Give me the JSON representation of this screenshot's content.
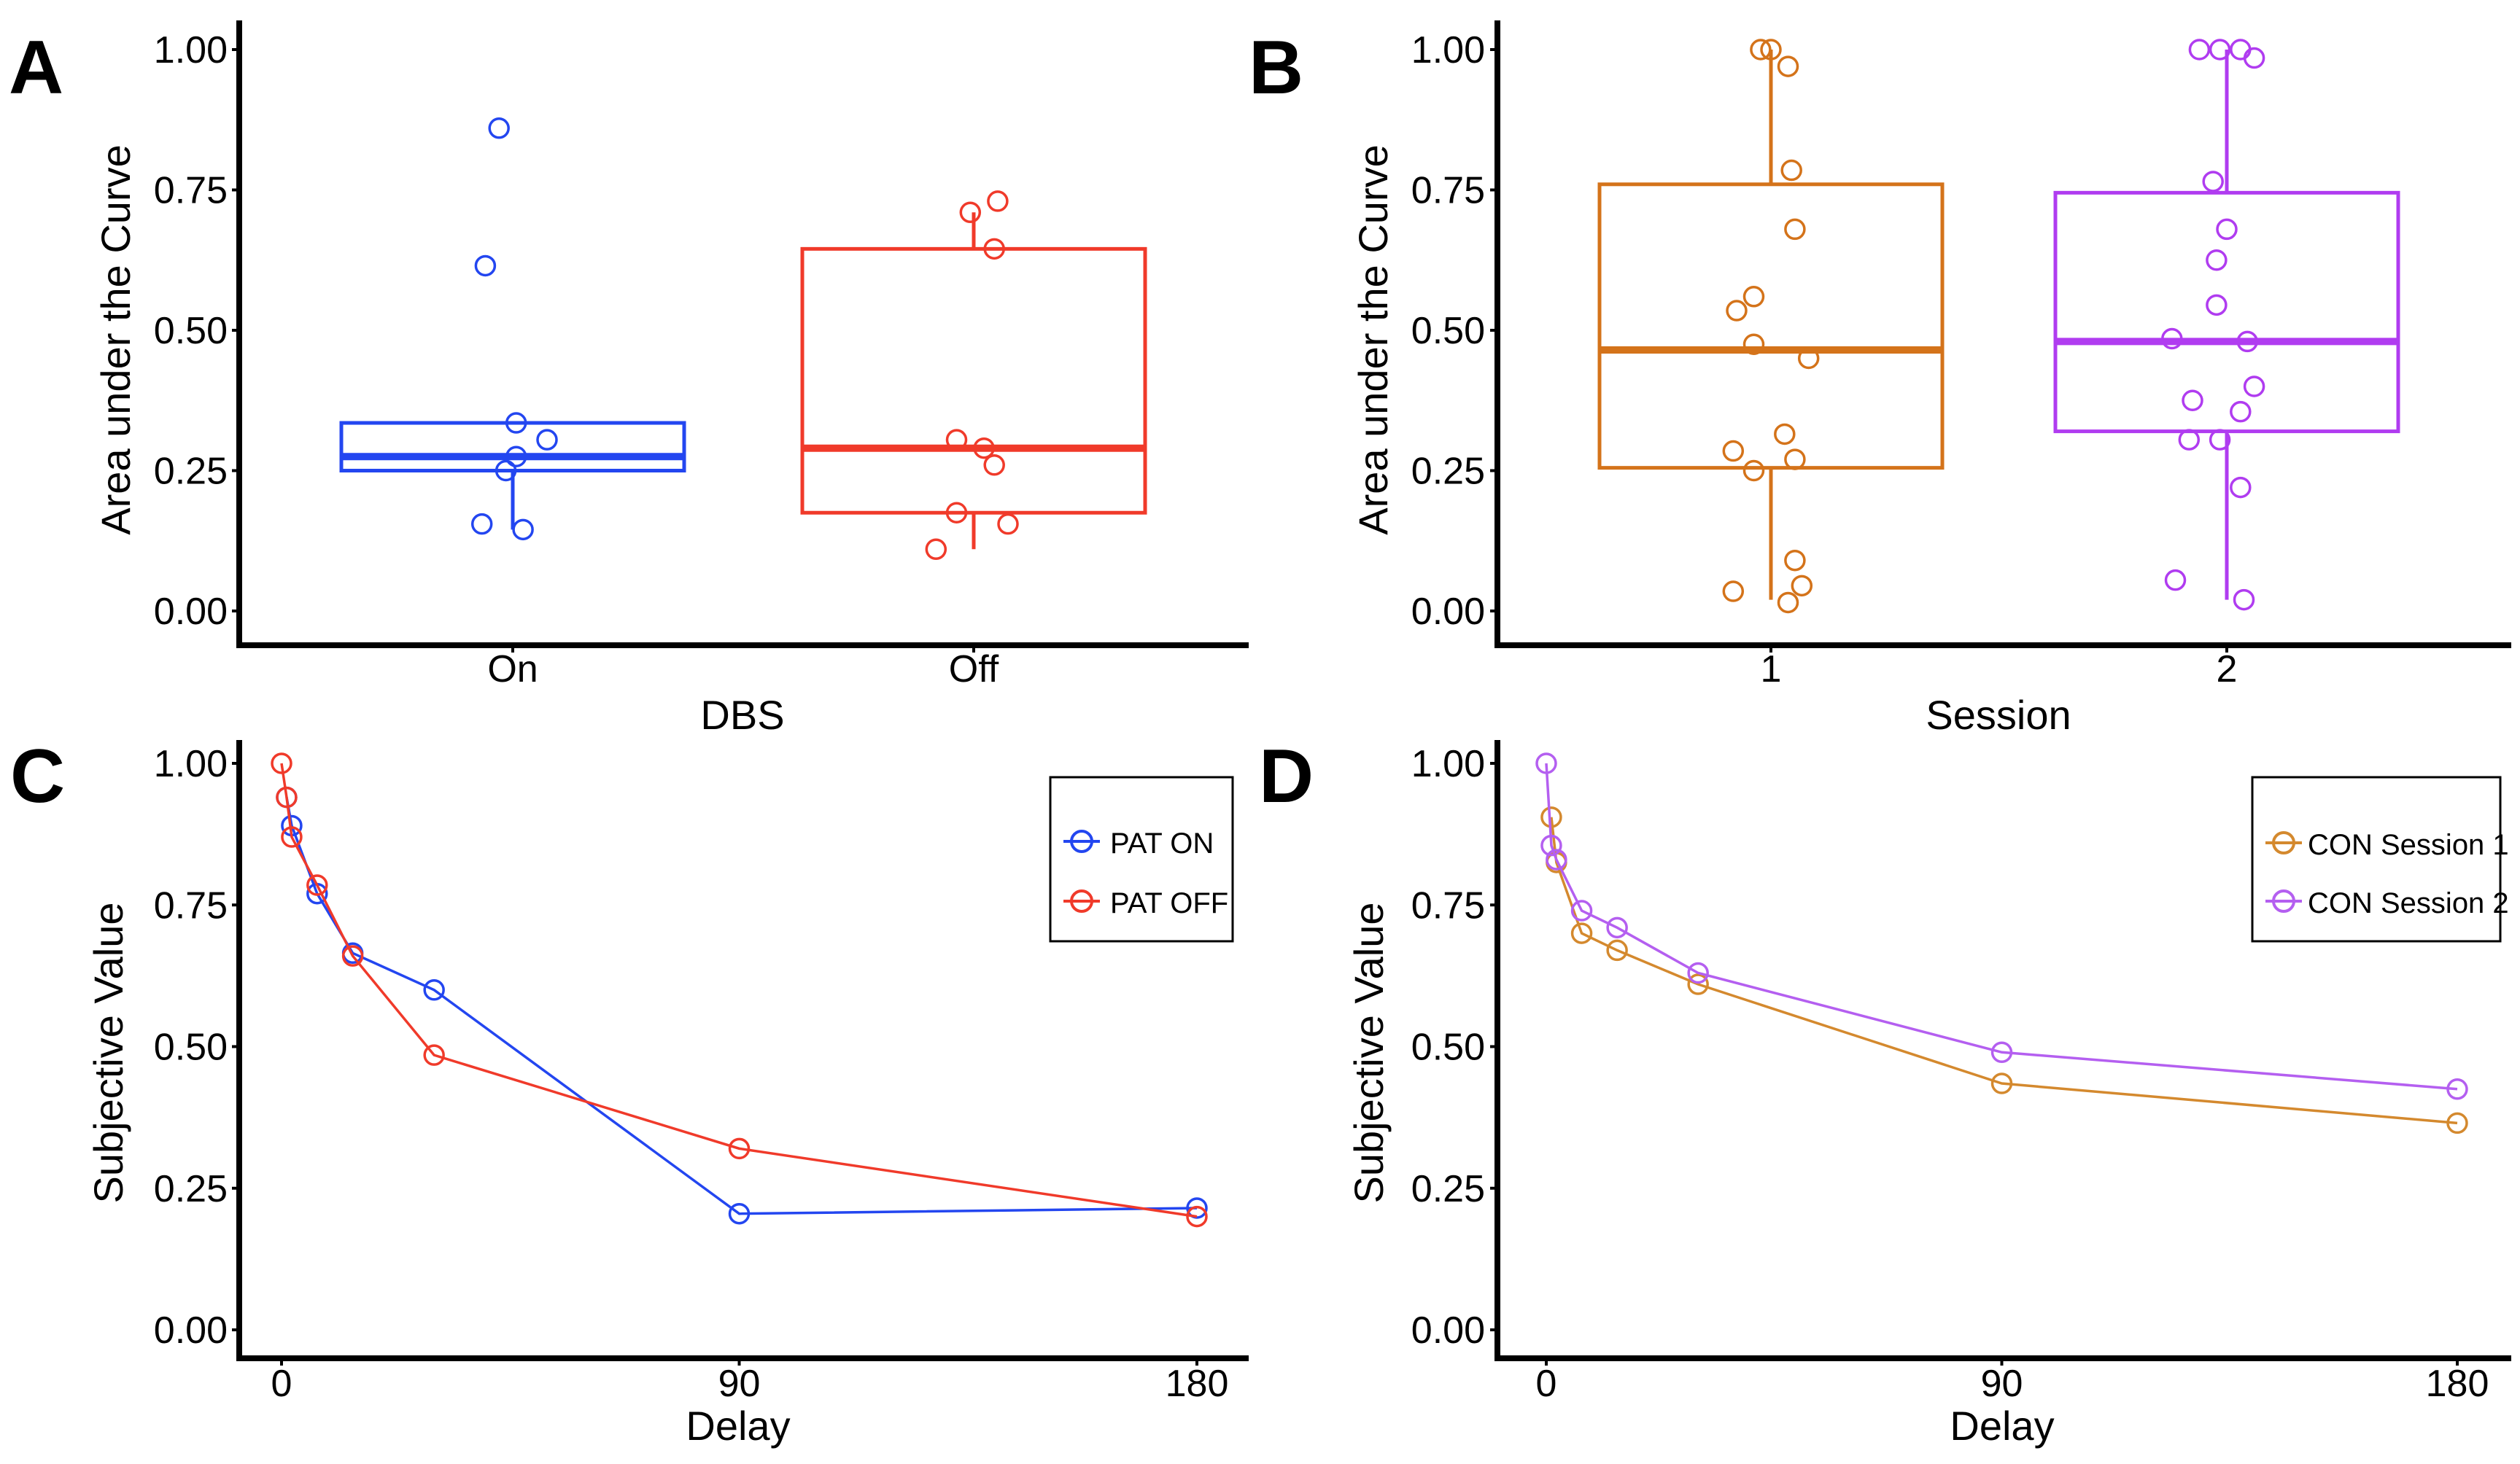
{
  "panels": [
    {
      "id": "A",
      "letter": "A",
      "chart_data": {
        "type": "boxplot",
        "ylabel": "Area under the Curve",
        "xlabel": "DBS",
        "ylim": [
          0,
          1
        ],
        "yticks": [
          0,
          0.25,
          0.5,
          0.75,
          1
        ],
        "ytick_labels": [
          "0.00",
          "0.25",
          "0.50",
          "0.75",
          "1.00"
        ],
        "categories": [
          "On",
          "Off"
        ],
        "groups": [
          {
            "name": "On",
            "color": "#2346f0",
            "q1": 0.25,
            "median": 0.275,
            "q3": 0.335,
            "whisker_low": 0.145,
            "whisker_high": 0.335,
            "points": [
              [
                -0.04,
                0.86
              ],
              [
                -0.08,
                0.615
              ],
              [
                0.01,
                0.335
              ],
              [
                0.1,
                0.305
              ],
              [
                0.01,
                0.275
              ],
              [
                -0.02,
                0.25
              ],
              [
                -0.09,
                0.155
              ],
              [
                0.03,
                0.145
              ]
            ]
          },
          {
            "name": "Off",
            "color": "#f03a2a",
            "q1": 0.175,
            "median": 0.29,
            "q3": 0.645,
            "whisker_low": 0.11,
            "whisker_high": 0.71,
            "points": [
              [
                -0.01,
                0.71
              ],
              [
                0.07,
                0.73
              ],
              [
                0.06,
                0.645
              ],
              [
                -0.05,
                0.305
              ],
              [
                0.03,
                0.29
              ],
              [
                0.06,
                0.26
              ],
              [
                -0.05,
                0.175
              ],
              [
                0.1,
                0.155
              ],
              [
                -0.11,
                0.11
              ]
            ]
          }
        ]
      }
    },
    {
      "id": "B",
      "letter": "B",
      "chart_data": {
        "type": "boxplot",
        "ylabel": "Area under the Curve",
        "xlabel": "Session",
        "ylim": [
          0,
          1
        ],
        "yticks": [
          0,
          0.25,
          0.5,
          0.75,
          1
        ],
        "ytick_labels": [
          "0.00",
          "0.25",
          "0.50",
          "0.75",
          "1.00"
        ],
        "categories": [
          "1",
          "2"
        ],
        "groups": [
          {
            "name": "1",
            "color": "#d4731a",
            "q1": 0.255,
            "median": 0.465,
            "q3": 0.76,
            "whisker_low": 0.02,
            "whisker_high": 1.0,
            "points": [
              [
                -0.03,
                1.0
              ],
              [
                0.0,
                1.0
              ],
              [
                0.05,
                0.97
              ],
              [
                0.06,
                0.785
              ],
              [
                0.07,
                0.68
              ],
              [
                -0.05,
                0.56
              ],
              [
                -0.1,
                0.535
              ],
              [
                -0.05,
                0.475
              ],
              [
                0.11,
                0.45
              ],
              [
                0.04,
                0.315
              ],
              [
                -0.11,
                0.285
              ],
              [
                0.07,
                0.27
              ],
              [
                -0.05,
                0.25
              ],
              [
                0.07,
                0.09
              ],
              [
                0.09,
                0.045
              ],
              [
                -0.11,
                0.035
              ],
              [
                0.05,
                0.015
              ]
            ]
          },
          {
            "name": "2",
            "color": "#b03cf0",
            "q1": 0.32,
            "median": 0.48,
            "q3": 0.745,
            "whisker_low": 0.02,
            "whisker_high": 1.0,
            "points": [
              [
                -0.08,
                1.0
              ],
              [
                -0.02,
                1.0
              ],
              [
                0.04,
                1.0
              ],
              [
                0.08,
                0.985
              ],
              [
                -0.04,
                0.765
              ],
              [
                0.0,
                0.68
              ],
              [
                -0.03,
                0.625
              ],
              [
                -0.03,
                0.545
              ],
              [
                -0.16,
                0.485
              ],
              [
                0.06,
                0.48
              ],
              [
                0.08,
                0.4
              ],
              [
                -0.1,
                0.375
              ],
              [
                0.04,
                0.355
              ],
              [
                -0.02,
                0.305
              ],
              [
                -0.11,
                0.305
              ],
              [
                0.04,
                0.22
              ],
              [
                -0.15,
                0.055
              ],
              [
                0.05,
                0.02
              ]
            ]
          }
        ]
      }
    },
    {
      "id": "C",
      "letter": "C",
      "chart_data": {
        "type": "line",
        "ylabel": "Subjective Value",
        "xlabel": "Delay",
        "xlim": [
          0,
          180
        ],
        "ylim": [
          0,
          1
        ],
        "xticks": [
          0,
          90,
          180
        ],
        "xtick_labels": [
          "0",
          "90",
          "180"
        ],
        "yticks": [
          0,
          0.25,
          0.5,
          0.75,
          1
        ],
        "ytick_labels": [
          "0.00",
          "0.25",
          "0.50",
          "0.75",
          "1.00"
        ],
        "legend_position": "top-right",
        "series": [
          {
            "name": "PAT ON",
            "color": "#2346f0",
            "x": [
              1,
              2,
              7,
              14,
              30,
              90,
              180
            ],
            "y": [
              0.94,
              0.89,
              0.77,
              0.665,
              0.6,
              0.205,
              0.215
            ]
          },
          {
            "name": "PAT OFF",
            "color": "#f03a2a",
            "x": [
              0,
              1,
              2,
              7,
              14,
              30,
              90,
              180
            ],
            "y": [
              1.0,
              0.94,
              0.87,
              0.785,
              0.66,
              0.485,
              0.32,
              0.2
            ]
          }
        ]
      }
    },
    {
      "id": "D",
      "letter": "D",
      "chart_data": {
        "type": "line",
        "ylabel": "Subjective Value",
        "xlabel": "Delay",
        "xlim": [
          0,
          180
        ],
        "ylim": [
          0,
          1
        ],
        "xticks": [
          0,
          90,
          180
        ],
        "xtick_labels": [
          "0",
          "90",
          "180"
        ],
        "yticks": [
          0,
          0.25,
          0.5,
          0.75,
          1
        ],
        "ytick_labels": [
          "0.00",
          "0.25",
          "0.50",
          "0.75",
          "1.00"
        ],
        "legend_position": "top-right",
        "series": [
          {
            "name": "CON Session 1",
            "color": "#d4892e",
            "x": [
              1,
              2,
              7,
              14,
              30,
              90,
              180
            ],
            "y": [
              0.905,
              0.825,
              0.7,
              0.67,
              0.61,
              0.435,
              0.365
            ]
          },
          {
            "name": "CON Session 2",
            "color": "#b45ff0",
            "x": [
              0,
              1,
              2,
              7,
              14,
              30,
              90,
              180
            ],
            "y": [
              1.0,
              0.855,
              0.83,
              0.74,
              0.71,
              0.63,
              0.49,
              0.425
            ]
          }
        ]
      }
    }
  ]
}
